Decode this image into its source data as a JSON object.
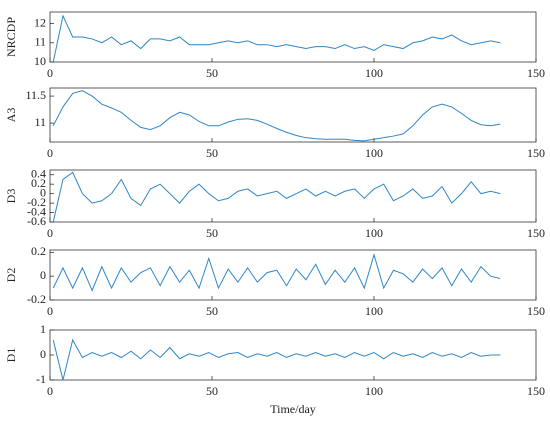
{
  "chart_data": [
    {
      "type": "line",
      "ylabel": "NRCDP",
      "color": "#2e86c8",
      "x": [
        1,
        4,
        7,
        10,
        13,
        16,
        19,
        22,
        25,
        28,
        31,
        34,
        37,
        40,
        43,
        46,
        49,
        52,
        55,
        58,
        61,
        64,
        67,
        70,
        73,
        76,
        79,
        82,
        85,
        88,
        91,
        94,
        97,
        100,
        103,
        106,
        109,
        112,
        115,
        118,
        121,
        124,
        127,
        130,
        133,
        136,
        139
      ],
      "values": [
        10.0,
        12.4,
        11.3,
        11.3,
        11.2,
        11.0,
        11.3,
        10.9,
        11.1,
        10.7,
        11.2,
        11.2,
        11.1,
        11.3,
        10.9,
        10.9,
        10.9,
        11.0,
        11.1,
        11.0,
        11.1,
        10.9,
        10.9,
        10.8,
        10.9,
        10.8,
        10.7,
        10.8,
        10.8,
        10.7,
        10.9,
        10.7,
        10.8,
        10.6,
        10.9,
        10.8,
        10.7,
        11.0,
        11.1,
        11.3,
        11.2,
        11.4,
        11.1,
        10.9,
        11.0,
        11.1,
        11.0
      ],
      "xlim": [
        0,
        150
      ],
      "xticks": [
        0,
        50,
        100,
        150
      ],
      "ylim": [
        10,
        12.6
      ],
      "yticks": [
        10,
        11,
        12
      ]
    },
    {
      "type": "line",
      "ylabel": "A3",
      "color": "#2e86c8",
      "x": [
        1,
        4,
        7,
        10,
        13,
        16,
        19,
        22,
        25,
        28,
        31,
        34,
        37,
        40,
        43,
        46,
        49,
        52,
        55,
        58,
        61,
        64,
        67,
        70,
        73,
        76,
        79,
        82,
        85,
        88,
        91,
        94,
        97,
        100,
        103,
        106,
        109,
        112,
        115,
        118,
        121,
        124,
        127,
        130,
        133,
        136,
        139
      ],
      "values": [
        10.95,
        11.3,
        11.55,
        11.6,
        11.5,
        11.35,
        11.28,
        11.2,
        11.05,
        10.92,
        10.88,
        10.95,
        11.1,
        11.2,
        11.15,
        11.03,
        10.95,
        10.95,
        11.02,
        11.07,
        11.08,
        11.05,
        10.98,
        10.9,
        10.83,
        10.77,
        10.73,
        10.71,
        10.7,
        10.7,
        10.7,
        10.68,
        10.67,
        10.7,
        10.73,
        10.76,
        10.8,
        10.95,
        11.15,
        11.3,
        11.35,
        11.3,
        11.18,
        11.05,
        10.97,
        10.95,
        10.98
      ],
      "xlim": [
        0,
        150
      ],
      "xticks": [
        0,
        50,
        100,
        150
      ],
      "ylim": [
        10.65,
        11.65
      ],
      "yticks": [
        11,
        11.5
      ]
    },
    {
      "type": "line",
      "ylabel": "D3",
      "color": "#2e86c8",
      "x": [
        1,
        4,
        7,
        10,
        13,
        16,
        19,
        22,
        25,
        28,
        31,
        34,
        37,
        40,
        43,
        46,
        49,
        52,
        55,
        58,
        61,
        64,
        67,
        70,
        73,
        76,
        79,
        82,
        85,
        88,
        91,
        94,
        97,
        100,
        103,
        106,
        109,
        112,
        115,
        118,
        121,
        124,
        127,
        130,
        133,
        136,
        139
      ],
      "values": [
        -0.6,
        0.3,
        0.45,
        0.0,
        -0.2,
        -0.15,
        0.0,
        0.3,
        -0.1,
        -0.25,
        0.1,
        0.2,
        0.0,
        -0.2,
        0.05,
        0.2,
        0.0,
        -0.15,
        -0.1,
        0.05,
        0.1,
        -0.05,
        0.0,
        0.05,
        -0.1,
        0.0,
        0.1,
        -0.05,
        0.05,
        -0.05,
        0.05,
        0.1,
        -0.1,
        0.1,
        0.2,
        -0.15,
        -0.05,
        0.1,
        -0.1,
        -0.05,
        0.15,
        -0.2,
        0.0,
        0.25,
        0.0,
        0.05,
        0.0
      ],
      "xlim": [
        0,
        150
      ],
      "xticks": [
        0,
        50,
        100,
        150
      ],
      "ylim": [
        -0.6,
        0.5
      ],
      "yticks": [
        -0.6,
        -0.4,
        -0.2,
        0,
        0.2,
        0.4
      ]
    },
    {
      "type": "line",
      "ylabel": "D2",
      "color": "#2e86c8",
      "x": [
        1,
        4,
        7,
        10,
        13,
        16,
        19,
        22,
        25,
        28,
        31,
        34,
        37,
        40,
        43,
        46,
        49,
        52,
        55,
        58,
        61,
        64,
        67,
        70,
        73,
        76,
        79,
        82,
        85,
        88,
        91,
        94,
        97,
        100,
        103,
        106,
        109,
        112,
        115,
        118,
        121,
        124,
        127,
        130,
        133,
        136,
        139
      ],
      "values": [
        -0.1,
        0.07,
        -0.1,
        0.07,
        -0.12,
        0.08,
        -0.1,
        0.07,
        -0.05,
        0.03,
        0.07,
        -0.08,
        0.08,
        -0.05,
        0.05,
        -0.1,
        0.15,
        -0.1,
        0.06,
        -0.05,
        0.07,
        -0.05,
        0.03,
        0.05,
        -0.08,
        0.06,
        -0.03,
        0.1,
        -0.07,
        0.05,
        -0.05,
        0.07,
        -0.1,
        0.18,
        -0.1,
        0.05,
        0.02,
        -0.05,
        0.06,
        -0.02,
        0.07,
        -0.08,
        0.06,
        -0.05,
        0.08,
        0.0,
        -0.02
      ],
      "xlim": [
        0,
        150
      ],
      "xticks": [
        0,
        50,
        100,
        150
      ],
      "ylim": [
        -0.2,
        0.22
      ],
      "yticks": [
        -0.2,
        0,
        0.2
      ]
    },
    {
      "type": "line",
      "ylabel": "D1",
      "xlabel": "Time/day",
      "color": "#2e86c8",
      "x": [
        1,
        4,
        7,
        10,
        13,
        16,
        19,
        22,
        25,
        28,
        31,
        34,
        37,
        40,
        43,
        46,
        49,
        52,
        55,
        58,
        61,
        64,
        67,
        70,
        73,
        76,
        79,
        82,
        85,
        88,
        91,
        94,
        97,
        100,
        103,
        106,
        109,
        112,
        115,
        118,
        121,
        124,
        127,
        130,
        133,
        136,
        139
      ],
      "values": [
        0.6,
        -1.0,
        0.6,
        -0.1,
        0.1,
        -0.05,
        0.1,
        -0.1,
        0.15,
        -0.15,
        0.2,
        -0.1,
        0.3,
        -0.15,
        0.05,
        -0.05,
        0.1,
        -0.1,
        0.05,
        0.1,
        -0.1,
        0.05,
        -0.05,
        0.1,
        -0.1,
        0.05,
        -0.05,
        0.1,
        -0.05,
        0.05,
        -0.1,
        0.1,
        -0.05,
        0.1,
        -0.15,
        0.1,
        -0.05,
        0.05,
        -0.1,
        0.1,
        -0.05,
        0.05,
        -0.1,
        0.1,
        -0.05,
        0.0,
        0.0
      ],
      "xlim": [
        0,
        150
      ],
      "xticks": [
        0,
        50,
        100,
        150
      ],
      "ylim": [
        -1,
        1
      ],
      "yticks": [
        -1,
        0,
        1
      ]
    }
  ]
}
